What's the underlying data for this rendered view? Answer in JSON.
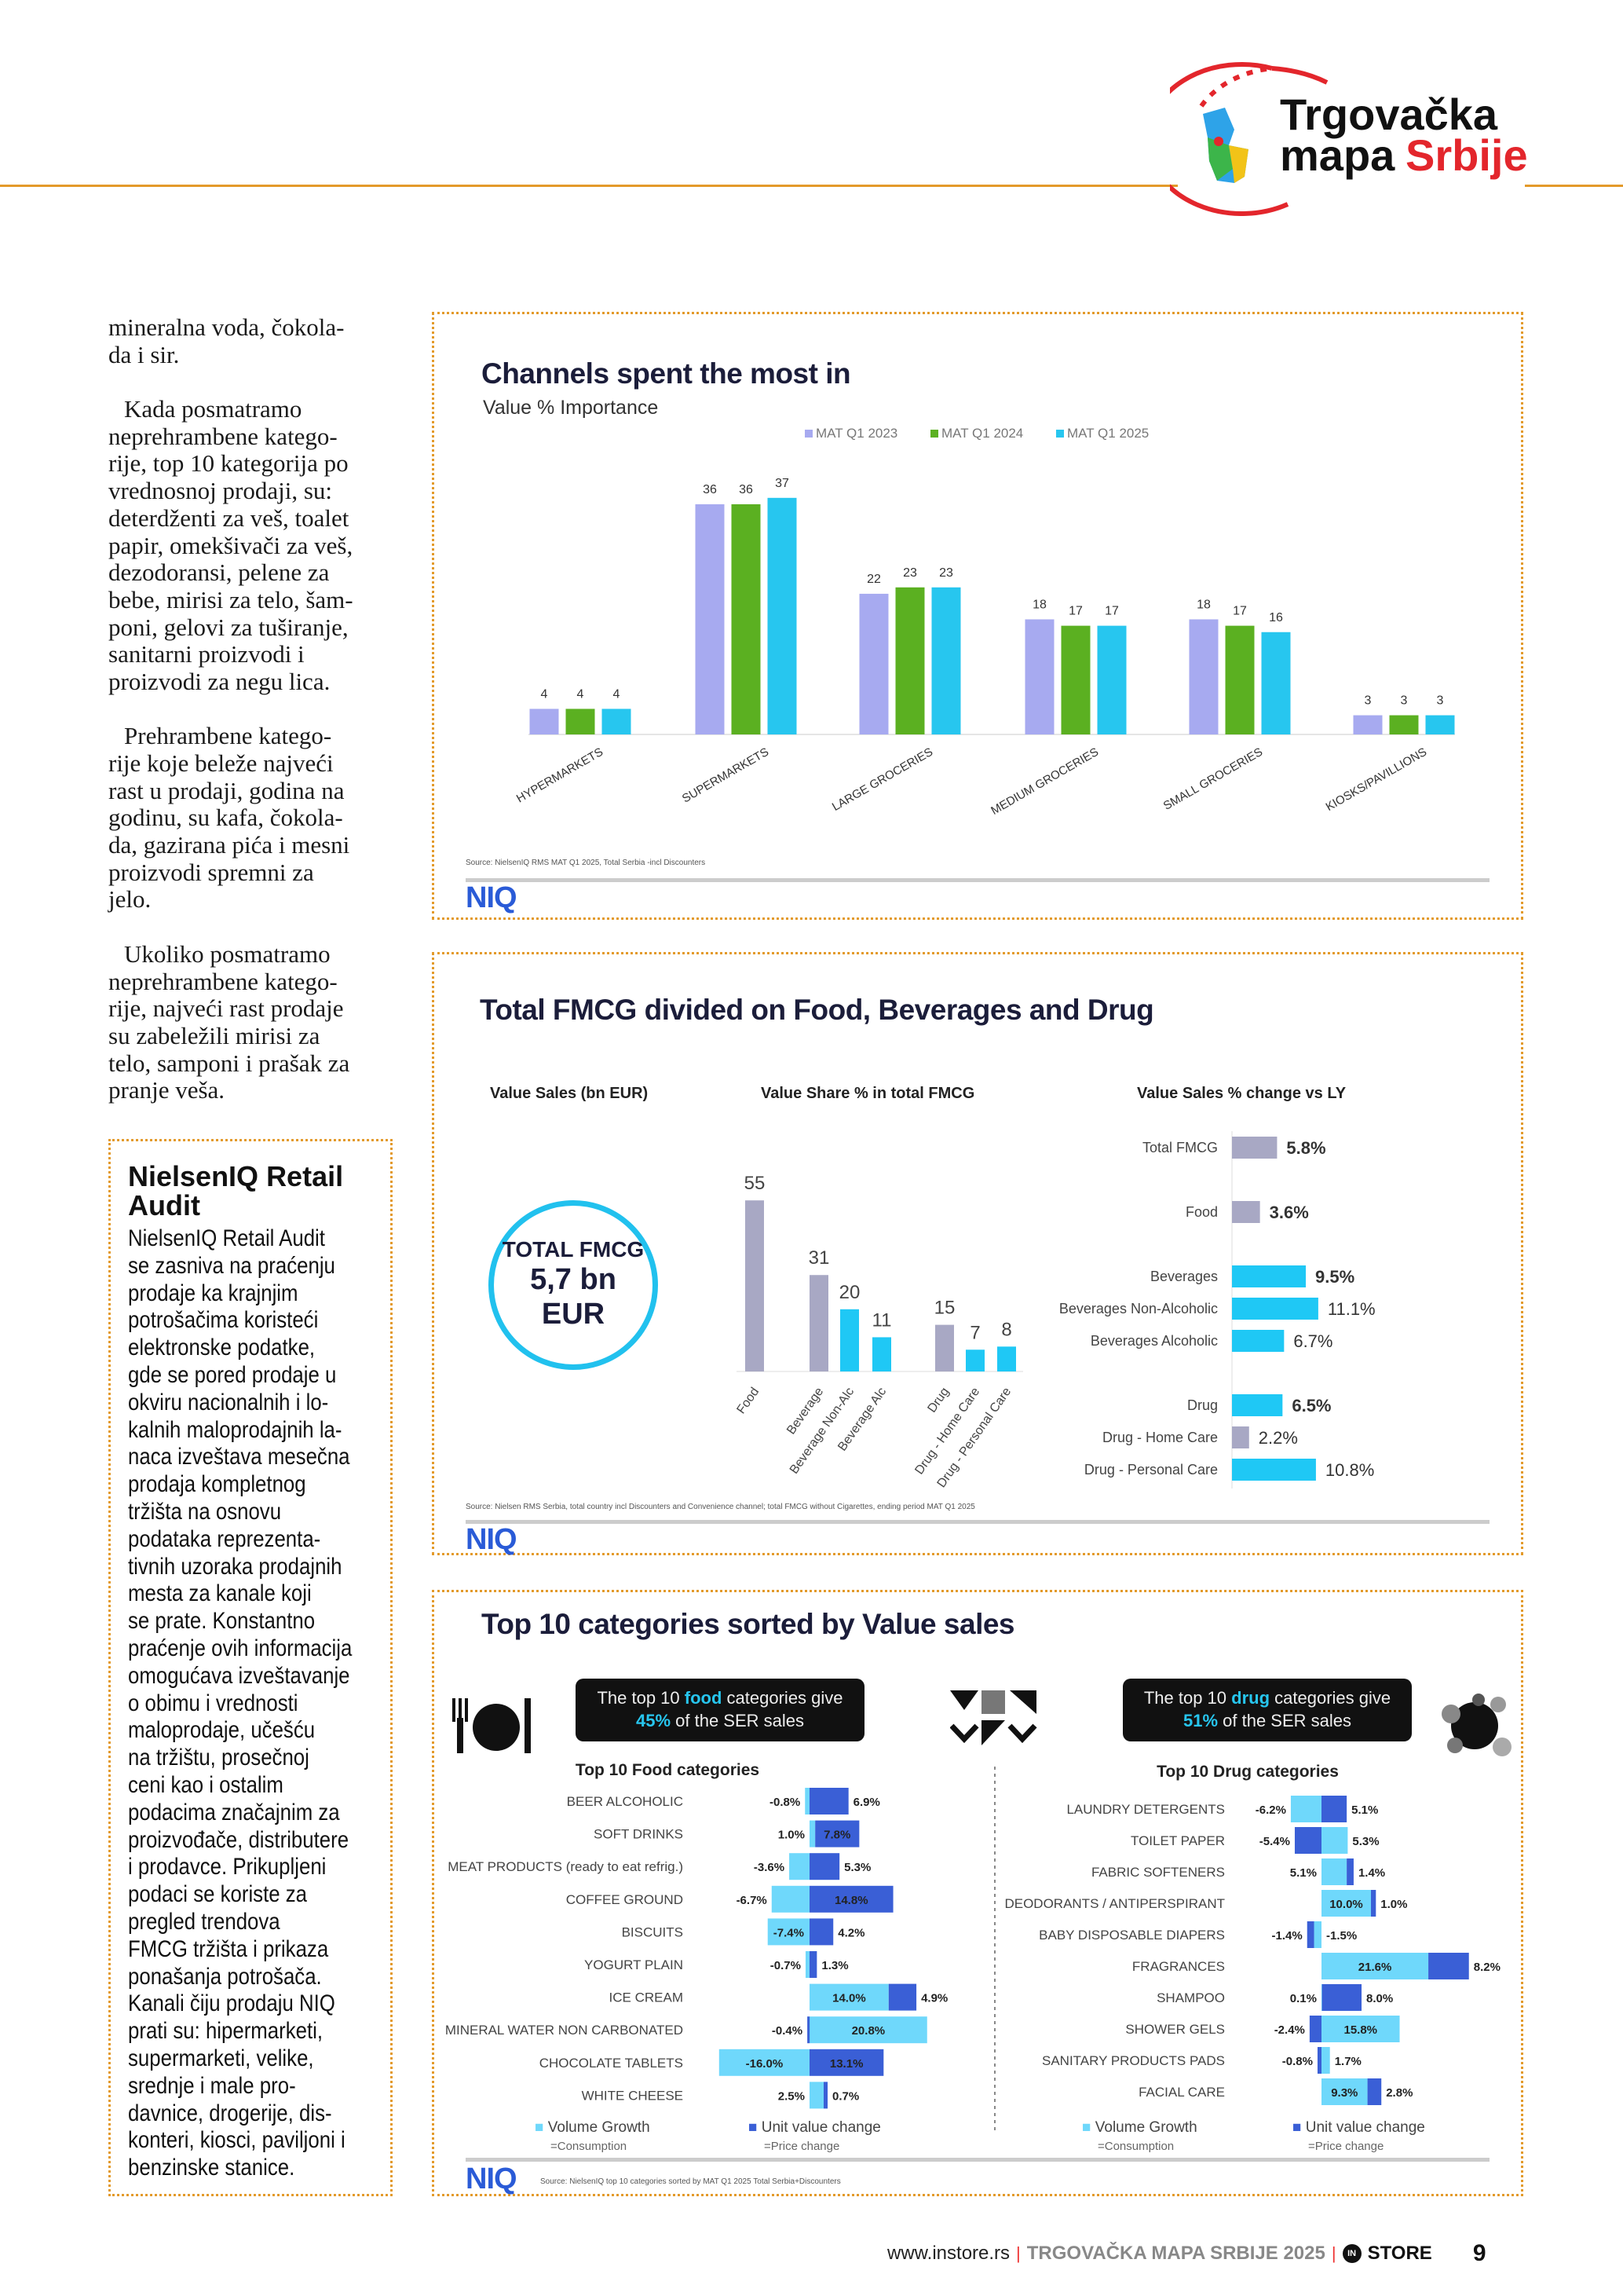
{
  "header": {
    "logo_line1": "Trgovačka",
    "logo_line2a": "mapa",
    "logo_line2b": "Srbije",
    "accent": "#e39a2a",
    "logo_red": "#e3262c"
  },
  "article": {
    "lines": [
      "mineralna voda, čokola-",
      "da i sir.",
      "",
      "Kada posmatramo",
      "neprehrambene katego-",
      "rije, top 10 kategorija po",
      "vrednosnoj prodaji, su:",
      "deterdženti za veš, toalet",
      "papir, omekšivači za veš,",
      "dezodoransi, pelene za",
      "bebe, mirisi za telo, šam-",
      "poni, gelovi za tuširanje,",
      "sanitarni proizvodi i",
      "proizvodi za negu lica.",
      "",
      "Prehrambene katego-",
      "rije koje beleže najveći",
      "rast u prodaji, godina na",
      "godinu, su kafa, čokola-",
      "da, gazirana pića i mesni",
      "proizvodi spremni za",
      "jelo.",
      "",
      "Ukoliko posmatramo",
      "neprehrambene katego-",
      "rije, najveći rast prodaje",
      "su zabeležili mirisi za",
      "telo, samponi i prašak za",
      "pranje veša."
    ]
  },
  "sidebar": {
    "title": "NielsenIQ Retail Audit",
    "lines": [
      "NielsenIQ Retail Audit",
      "se zasniva na praćenju",
      "prodaje ka krajnjim",
      "potrošačima koristeći",
      "elektronske podatke,",
      "gde se pored prodaje u",
      "okviru nacionalnih i lo-",
      "kalnih maloprodajnih la-",
      "naca izveštava mesečna",
      "prodaja kompletnog",
      "tržišta na osnovu",
      "podataka reprezenta-",
      "tivnih uzoraka prodajnih",
      "mesta za kanale koji",
      "se prate. Konstantno",
      "praćenje ovih informacija",
      "omogućava izveštavanje",
      "o obimu i vrednosti",
      "maloprodaje, učešću",
      "na tržištu, prosečnoj",
      "ceni kao i ostalim",
      "podacima značajnim za",
      "proizvođače, distributere",
      "i prodavce. Prikupljeni",
      "podaci se koriste za",
      "pregled trendova",
      "FMCG tržišta i prikaza",
      "ponašanja potrošača.",
      "Kanali čiju prodaju NIQ",
      "prati su: hipermarketi,",
      "supermarketi, velike,",
      "srednje i male pro-",
      "davnice, drogerije, dis-",
      "konteri, kiosci, paviljoni i",
      "benzinske stanice."
    ]
  },
  "chart_data": [
    {
      "type": "bar",
      "title": "Channels spent the most in",
      "subtitle": "Value % Importance",
      "categories": [
        "HYPERMARKETS",
        "SUPERMARKETS",
        "LARGE GROCERIES",
        "MEDIUM GROCERIES",
        "SMALL GROCERIES",
        "KIOSKS/PAVILLIONS"
      ],
      "series": [
        {
          "name": "MAT Q1 2023",
          "color": "#a7aaf0",
          "values": [
            4,
            36,
            22,
            18,
            18,
            3
          ]
        },
        {
          "name": "MAT Q1 2024",
          "color": "#5bb021",
          "values": [
            4,
            36,
            23,
            17,
            17,
            3
          ]
        },
        {
          "name": "MAT Q1 2025",
          "color": "#27c6ef",
          "values": [
            4,
            37,
            23,
            17,
            16,
            3
          ]
        }
      ],
      "legend": "top-right",
      "source": "Source: NielsenIQ RMS MAT Q1 2025, Total Serbia -incl Discounters",
      "logo": "NIQ"
    },
    {
      "type": "bar",
      "title": "Total FMCG divided on Food, Beverages and Drug",
      "headers": [
        "Value Sales (bn EUR)",
        "Value Share % in total FMCG",
        "Value Sales % change vs LY"
      ],
      "total": {
        "line1": "TOTAL FMCG",
        "line2": "5,7 bn",
        "line3": "EUR"
      },
      "share": {
        "categories": [
          "Food",
          "Beverage",
          "Beverage Non-Alc",
          "Beverage Alc",
          "Drug",
          "Drug - Home Care",
          "Drug - Personal Care"
        ],
        "values": [
          55,
          31,
          20,
          11,
          15,
          7,
          8
        ],
        "colors": [
          "#a8a8c4",
          "#a8a8c4",
          "#1fc8f5",
          "#1fc8f5",
          "#a8a8c4",
          "#1fc8f5",
          "#1fc8f5"
        ]
      },
      "change": {
        "categories": [
          "Total FMCG",
          "Food",
          "Beverages",
          "Beverages Non-Alcoholic",
          "Beverages Alcoholic",
          "Drug",
          "Drug - Home Care",
          "Drug - Personal Care"
        ],
        "values": [
          5.8,
          3.6,
          9.5,
          11.1,
          6.7,
          6.5,
          2.2,
          10.8
        ],
        "labels": [
          "5.8%",
          "3.6%",
          "9.5%",
          "11.1%",
          "6.7%",
          "6.5%",
          "2.2%",
          "10.8%"
        ],
        "colors": [
          "#a8a8c4",
          "#a8a8c4",
          "#1fc8f5",
          "#1fc8f5",
          "#1fc8f5",
          "#1fc8f5",
          "#a8a8c4",
          "#1fc8f5"
        ]
      },
      "source": "Source: Nielsen RMS Serbia, total country incl Discounters and Convenience channel; total FMCG without Cigarettes, ending period MAT Q1 2025",
      "logo": "NIQ"
    },
    {
      "type": "bar",
      "title": "Top 10 categories sorted by Value sales",
      "food_box": {
        "pre": "The top 10 ",
        "hl": "food",
        "post": " categories give",
        "pct": "45%",
        "tail": " of the SER sales"
      },
      "drug_box": {
        "pre": "The top 10 ",
        "hl": "drug",
        "post": " categories give",
        "pct": "51%",
        "tail": " of the SER sales"
      },
      "colors": {
        "volume": "#6fd8fb",
        "unit": "#3a5fd6"
      },
      "food": {
        "title": "Top 10 Food categories",
        "rows": [
          {
            "label": "BEER ALCOHOLIC",
            "volume": -0.8,
            "unit": 6.9
          },
          {
            "label": "SOFT DRINKS",
            "volume": 1.0,
            "unit": 7.8
          },
          {
            "label": "MEAT PRODUCTS (ready to eat refrig.)",
            "volume": -3.6,
            "unit": 5.3
          },
          {
            "label": "COFFEE GROUND",
            "volume": -6.7,
            "unit": 14.8
          },
          {
            "label": "BISCUITS",
            "volume": -7.4,
            "unit": 4.2
          },
          {
            "label": "YOGURT PLAIN",
            "volume": -0.7,
            "unit": 1.3
          },
          {
            "label": "ICE CREAM",
            "volume": 14.0,
            "unit": 4.9
          },
          {
            "label": "MINERAL WATER NON CARBONATED",
            "volume": 20.8,
            "unit": -0.4
          },
          {
            "label": "CHOCOLATE TABLETS",
            "volume": -16.0,
            "unit": 13.1
          },
          {
            "label": "WHITE CHEESE",
            "volume": 2.5,
            "unit": 0.7
          }
        ]
      },
      "drug": {
        "title": "Top 10 Drug categories",
        "rows": [
          {
            "label": "LAUNDRY DETERGENTS",
            "volume": -6.2,
            "unit": 5.1
          },
          {
            "label": "TOILET PAPER",
            "volume": 5.3,
            "unit": -5.4
          },
          {
            "label": "FABRIC SOFTENERS",
            "volume": 5.1,
            "unit": 1.4
          },
          {
            "label": "DEODORANTS / ANTIPERSPIRANT",
            "volume": 10.0,
            "unit": 1.0
          },
          {
            "label": "BABY DISPOSABLE DIAPERS",
            "volume": -1.5,
            "unit": -1.4
          },
          {
            "label": "FRAGRANCES",
            "volume": 21.6,
            "unit": 8.2
          },
          {
            "label": "SHAMPOO",
            "volume": 0.1,
            "unit": 8.0
          },
          {
            "label": "SHOWER GELS",
            "volume": 15.8,
            "unit": -2.4
          },
          {
            "label": "SANITARY PRODUCTS PADS",
            "volume": 1.7,
            "unit": -0.8
          },
          {
            "label": "FACIAL CARE",
            "volume": 9.3,
            "unit": 2.8
          }
        ]
      },
      "legend": {
        "volume": "Volume Growth",
        "volume_sub": "=Consumption",
        "unit": "Unit value change",
        "unit_sub": "=Price change"
      },
      "icons": [
        "cutlery-plate-icon",
        "shapes-icon",
        "dots-icon"
      ],
      "source": "Source: NielsenIQ top 10 categories sorted by MAT Q1 2025 Total Serbia+Discounters",
      "logo": "NIQ"
    }
  ],
  "footer": {
    "url": "www.instore.rs",
    "publication": "TRGOVAČKA MAPA SRBIJE 2025",
    "brand": "STORE",
    "brand_mark": "IN",
    "page": "9"
  }
}
